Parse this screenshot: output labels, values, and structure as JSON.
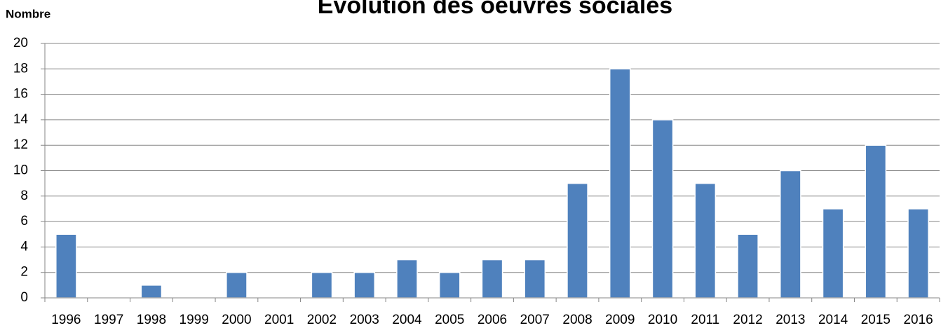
{
  "chart_data": {
    "type": "bar",
    "title": "Évolution des oeuvres sociales",
    "y_label": "Nombre",
    "categories": [
      "1996",
      "1997",
      "1998",
      "1999",
      "2000",
      "2001",
      "2002",
      "2003",
      "2004",
      "2005",
      "2006",
      "2007",
      "2008",
      "2009",
      "2010",
      "2011",
      "2012",
      "2013",
      "2014",
      "2015",
      "2016"
    ],
    "values": [
      5,
      0,
      1,
      0,
      2,
      0,
      2,
      2,
      3,
      2,
      3,
      3,
      9,
      18,
      14,
      9,
      5,
      10,
      7,
      12,
      7
    ],
    "color": "#4f81bd",
    "ylim": [
      0,
      20
    ],
    "yticks": [
      0,
      2,
      4,
      6,
      8,
      10,
      12,
      14,
      16,
      18,
      20
    ],
    "grid": true
  }
}
